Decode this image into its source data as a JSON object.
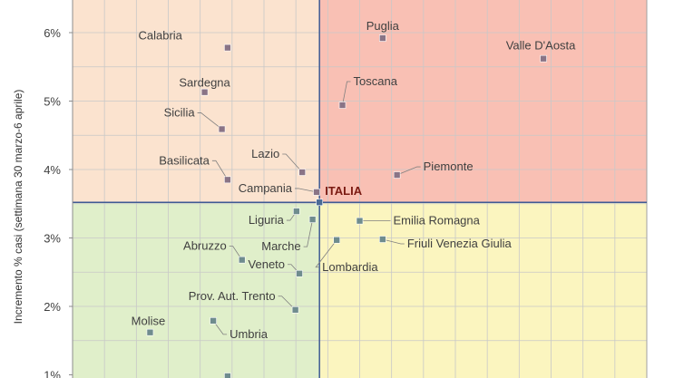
{
  "chart_data": {
    "type": "scatter",
    "ylabel": "Incremento % casi (settimana 30 marzo-6 aprile)",
    "ylim": [
      0.01,
      0.065
    ],
    "xlim": [
      0,
      10
    ],
    "y_ticks": [
      {
        "value": 0.01,
        "label": "1%"
      },
      {
        "value": 0.02,
        "label": "2%"
      },
      {
        "value": 0.03,
        "label": "3%"
      },
      {
        "value": 0.04,
        "label": "4%"
      },
      {
        "value": 0.05,
        "label": "5%"
      },
      {
        "value": 0.06,
        "label": "6%"
      }
    ],
    "grid": true,
    "reference": {
      "name": "ITALIA",
      "x": 4.3,
      "y": 0.0352
    },
    "quadrant_colors": {
      "top_left": "#fbe3cf",
      "top_right": "#f9c0b4",
      "bottom_left": "#e0efca",
      "bottom_right": "#fbf5bf"
    },
    "marker_colors": {
      "high_growth": "#8a7486",
      "low_growth": "#6f8c8e"
    },
    "points": [
      {
        "name": "Calabria",
        "x": 2.7,
        "y": 0.0578
      },
      {
        "name": "Puglia",
        "x": 5.4,
        "y": 0.0592
      },
      {
        "name": "Valle D'Aosta",
        "x": 8.2,
        "y": 0.0562
      },
      {
        "name": "Sardegna",
        "x": 2.3,
        "y": 0.0513
      },
      {
        "name": "Toscana",
        "x": 4.7,
        "y": 0.0494
      },
      {
        "name": "Sicilia",
        "x": 2.6,
        "y": 0.0459
      },
      {
        "name": "Lazio",
        "x": 4.0,
        "y": 0.0396
      },
      {
        "name": "Piemonte",
        "x": 5.65,
        "y": 0.0392
      },
      {
        "name": "Basilicata",
        "x": 2.7,
        "y": 0.0385
      },
      {
        "name": "Campania",
        "x": 4.25,
        "y": 0.0367
      },
      {
        "name": "Liguria",
        "x": 3.9,
        "y": 0.0339
      },
      {
        "name": "Marche",
        "x": 4.18,
        "y": 0.0327
      },
      {
        "name": "Emilia Romagna",
        "x": 5.0,
        "y": 0.0325
      },
      {
        "name": "Lombardia",
        "x": 4.6,
        "y": 0.0297
      },
      {
        "name": "Friuli Venezia Giulia",
        "x": 5.4,
        "y": 0.0298
      },
      {
        "name": "Abruzzo",
        "x": 2.95,
        "y": 0.0268
      },
      {
        "name": "Veneto",
        "x": 3.95,
        "y": 0.0248
      },
      {
        "name": "Prov. Aut. Trento",
        "x": 3.88,
        "y": 0.0195
      },
      {
        "name": "Umbria",
        "x": 2.45,
        "y": 0.0179
      },
      {
        "name": "Molise",
        "x": 1.35,
        "y": 0.0162
      },
      {
        "name": "",
        "x": 2.7,
        "y": 0.0098
      }
    ]
  }
}
